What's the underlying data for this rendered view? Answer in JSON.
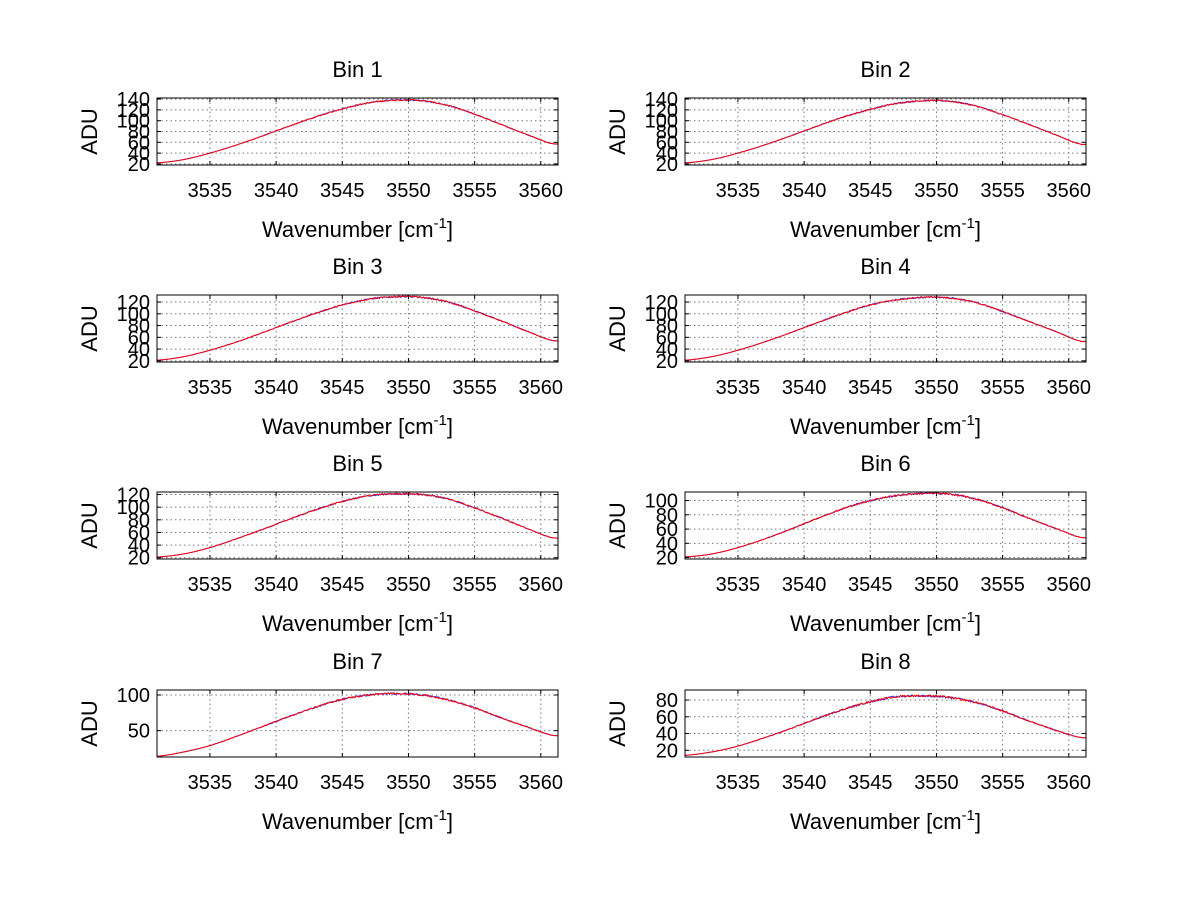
{
  "chart_data": [
    {
      "type": "line",
      "title": "Bin 1",
      "xlabel": "Wavenumber [cm",
      "xlabel_sup": "-1",
      "xlabel_end": "]",
      "ylabel": "ADU",
      "xlim": [
        3531,
        3561.3
      ],
      "ylim": [
        18,
        142
      ],
      "xticks": [
        3535,
        3540,
        3545,
        3550,
        3555,
        3560
      ],
      "yticks": [
        20,
        40,
        60,
        80,
        100,
        120,
        140
      ],
      "ytick_labels": [
        "20",
        "40",
        "60",
        "80",
        "100",
        "120",
        "140"
      ],
      "grid": true,
      "series": [
        {
          "color": "#ff0000",
          "x": [
            3531,
            3533,
            3535,
            3537,
            3539,
            3541,
            3543,
            3545,
            3547,
            3549,
            3551,
            3553,
            3555,
            3557,
            3559,
            3561
          ],
          "values": [
            22,
            28,
            40,
            55,
            72,
            90,
            107,
            122,
            133,
            138,
            137,
            128,
            112,
            93,
            74,
            57
          ]
        }
      ]
    },
    {
      "type": "line",
      "title": "Bin 2",
      "xlabel": "Wavenumber [cm",
      "xlabel_sup": "-1",
      "xlabel_end": "]",
      "ylabel": "ADU",
      "xlim": [
        3531,
        3561.3
      ],
      "ylim": [
        18,
        142
      ],
      "xticks": [
        3535,
        3540,
        3545,
        3550,
        3555,
        3560
      ],
      "yticks": [
        20,
        40,
        60,
        80,
        100,
        120,
        140
      ],
      "ytick_labels": [
        "20",
        "40",
        "60",
        "80",
        "100",
        "120",
        "140"
      ],
      "grid": true,
      "series": [
        {
          "color": "#ff0000",
          "x": [
            3531,
            3533,
            3535,
            3537,
            3539,
            3541,
            3543,
            3545,
            3547,
            3549,
            3551,
            3553,
            3555,
            3557,
            3559,
            3561
          ],
          "values": [
            22,
            28,
            40,
            55,
            72,
            90,
            107,
            121,
            132,
            137,
            136,
            127,
            111,
            93,
            74,
            56
          ]
        }
      ]
    },
    {
      "type": "line",
      "title": "Bin 3",
      "xlabel": "Wavenumber [cm",
      "xlabel_sup": "-1",
      "xlabel_end": "]",
      "ylabel": "ADU",
      "xlim": [
        3531,
        3561.3
      ],
      "ylim": [
        18,
        132
      ],
      "xticks": [
        3535,
        3540,
        3545,
        3550,
        3555,
        3560
      ],
      "yticks": [
        20,
        40,
        60,
        80,
        100,
        120
      ],
      "ytick_labels": [
        "20",
        "40",
        "60",
        "80",
        "100",
        "120"
      ],
      "grid": true,
      "series": [
        {
          "color": "#ff0000",
          "x": [
            3531,
            3533,
            3535,
            3537,
            3539,
            3541,
            3543,
            3545,
            3547,
            3549,
            3551,
            3553,
            3555,
            3557,
            3559,
            3561
          ],
          "values": [
            21,
            27,
            38,
            52,
            68,
            85,
            101,
            115,
            125,
            129,
            128,
            120,
            105,
            88,
            70,
            54
          ]
        }
      ]
    },
    {
      "type": "line",
      "title": "Bin 4",
      "xlabel": "Wavenumber [cm",
      "xlabel_sup": "-1",
      "xlabel_end": "]",
      "ylabel": "ADU",
      "xlim": [
        3531,
        3561.3
      ],
      "ylim": [
        18,
        132
      ],
      "xticks": [
        3535,
        3540,
        3545,
        3550,
        3555,
        3560
      ],
      "yticks": [
        20,
        40,
        60,
        80,
        100,
        120
      ],
      "ytick_labels": [
        "20",
        "40",
        "60",
        "80",
        "100",
        "120"
      ],
      "grid": true,
      "series": [
        {
          "color": "#ff0000",
          "x": [
            3531,
            3533,
            3535,
            3537,
            3539,
            3541,
            3543,
            3545,
            3547,
            3549,
            3551,
            3553,
            3555,
            3557,
            3559,
            3561
          ],
          "values": [
            21,
            27,
            38,
            52,
            68,
            85,
            101,
            115,
            124,
            128,
            127,
            119,
            104,
            87,
            70,
            53
          ]
        }
      ]
    },
    {
      "type": "line",
      "title": "Bin 5",
      "xlabel": "Wavenumber [cm",
      "xlabel_sup": "-1",
      "xlabel_end": "]",
      "ylabel": "ADU",
      "xlim": [
        3531,
        3561.3
      ],
      "ylim": [
        18,
        124
      ],
      "xticks": [
        3535,
        3540,
        3545,
        3550,
        3555,
        3560
      ],
      "yticks": [
        20,
        40,
        60,
        80,
        100,
        120
      ],
      "ytick_labels": [
        "20",
        "40",
        "60",
        "80",
        "100",
        "120"
      ],
      "grid": true,
      "series": [
        {
          "color": "#ff0000",
          "x": [
            3531,
            3533,
            3535,
            3537,
            3539,
            3541,
            3543,
            3545,
            3547,
            3549,
            3551,
            3553,
            3555,
            3557,
            3559,
            3561
          ],
          "values": [
            21,
            26,
            36,
            50,
            65,
            81,
            96,
            109,
            118,
            121,
            120,
            113,
            99,
            83,
            66,
            51
          ]
        }
      ]
    },
    {
      "type": "line",
      "title": "Bin 6",
      "xlabel": "Wavenumber [cm",
      "xlabel_sup": "-1",
      "xlabel_end": "]",
      "ylabel": "ADU",
      "xlim": [
        3531,
        3561.3
      ],
      "ylim": [
        18,
        112
      ],
      "xticks": [
        3535,
        3540,
        3545,
        3550,
        3555,
        3560
      ],
      "yticks": [
        20,
        40,
        60,
        80,
        100
      ],
      "ytick_labels": [
        "20",
        "40",
        "60",
        "80",
        "100"
      ],
      "grid": true,
      "series": [
        {
          "color": "#ff0000",
          "x": [
            3531,
            3533,
            3535,
            3537,
            3539,
            3541,
            3543,
            3545,
            3547,
            3549,
            3551,
            3553,
            3555,
            3557,
            3559,
            3561
          ],
          "values": [
            21,
            25,
            34,
            46,
            60,
            75,
            89,
            100,
            107,
            110,
            109,
            102,
            90,
            75,
            61,
            48
          ]
        }
      ]
    },
    {
      "type": "line",
      "title": "Bin 7",
      "xlabel": "Wavenumber [cm",
      "xlabel_sup": "-1",
      "xlabel_end": "]",
      "ylabel": "ADU",
      "xlim": [
        3531,
        3561.3
      ],
      "ylim": [
        13,
        107
      ],
      "xticks": [
        3535,
        3540,
        3545,
        3550,
        3555,
        3560
      ],
      "yticks": [
        50,
        100
      ],
      "ytick_labels": [
        "50",
        "100"
      ],
      "grid": true,
      "series": [
        {
          "color": "#ff0000",
          "x": [
            3531,
            3533,
            3535,
            3537,
            3539,
            3541,
            3543,
            3545,
            3547,
            3549,
            3551,
            3553,
            3555,
            3557,
            3559,
            3561
          ],
          "values": [
            14,
            20,
            29,
            42,
            56,
            70,
            83,
            94,
            100,
            102,
            100,
            93,
            82,
            68,
            55,
            43
          ]
        }
      ]
    },
    {
      "type": "line",
      "title": "Bin 8",
      "xlabel": "Wavenumber [cm",
      "xlabel_sup": "-1",
      "xlabel_end": "]",
      "ylabel": "ADU",
      "xlim": [
        3531,
        3561.3
      ],
      "ylim": [
        12,
        92
      ],
      "xticks": [
        3535,
        3540,
        3545,
        3550,
        3555,
        3560
      ],
      "yticks": [
        20,
        40,
        60,
        80
      ],
      "ytick_labels": [
        "20",
        "40",
        "60",
        "80"
      ],
      "grid": true,
      "series": [
        {
          "color": "#ff0000",
          "x": [
            3531,
            3533,
            3535,
            3537,
            3539,
            3541,
            3543,
            3545,
            3547,
            3549,
            3551,
            3553,
            3555,
            3557,
            3559,
            3561
          ],
          "values": [
            14,
            18,
            25,
            35,
            46,
            58,
            69,
            78,
            84,
            85,
            83,
            77,
            67,
            55,
            44,
            35
          ]
        }
      ]
    }
  ]
}
